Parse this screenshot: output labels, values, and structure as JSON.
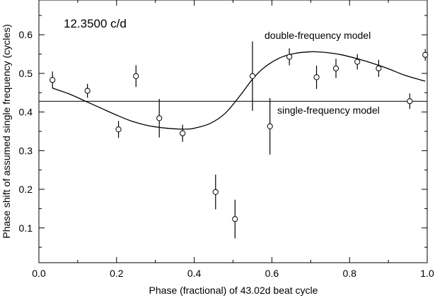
{
  "chart_data": {
    "type": "scatter",
    "annotation_top_left": "12.3500 c/d",
    "xlabel": "Phase (fractional) of 43.02d beat cycle",
    "ylabel": "Phase shift of assumed single frequency (cycles)",
    "xlim": [
      0.0,
      1.0
    ],
    "ylim": [
      0.01,
      0.69
    ],
    "x_ticks": [
      0.0,
      0.2,
      0.4,
      0.6,
      0.8,
      1.0
    ],
    "x_tick_labels": [
      "0.0",
      "0.2",
      "0.4",
      "0.6",
      "0.8",
      "1.0"
    ],
    "y_ticks": [
      0.1,
      0.2,
      0.3,
      0.4,
      0.5,
      0.6
    ],
    "y_tick_labels": [
      "0.1",
      "0.2",
      "0.3",
      "0.4",
      "0.5",
      "0.6"
    ],
    "grid": false,
    "legend": "none",
    "points": [
      {
        "x": 0.035,
        "y": 0.483,
        "yerr": 0.022
      },
      {
        "x": 0.125,
        "y": 0.455,
        "yerr": 0.018
      },
      {
        "x": 0.205,
        "y": 0.355,
        "yerr": 0.022
      },
      {
        "x": 0.25,
        "y": 0.493,
        "yerr": 0.028
      },
      {
        "x": 0.31,
        "y": 0.384,
        "yerr": 0.05
      },
      {
        "x": 0.37,
        "y": 0.345,
        "yerr": 0.022
      },
      {
        "x": 0.455,
        "y": 0.193,
        "yerr": 0.045
      },
      {
        "x": 0.505,
        "y": 0.123,
        "yerr": 0.05
      },
      {
        "x": 0.55,
        "y": 0.493,
        "yerr": 0.09
      },
      {
        "x": 0.595,
        "y": 0.363,
        "yerr": 0.073
      },
      {
        "x": 0.645,
        "y": 0.543,
        "yerr": 0.022
      },
      {
        "x": 0.715,
        "y": 0.49,
        "yerr": 0.03
      },
      {
        "x": 0.765,
        "y": 0.513,
        "yerr": 0.025
      },
      {
        "x": 0.82,
        "y": 0.53,
        "yerr": 0.02
      },
      {
        "x": 0.875,
        "y": 0.513,
        "yerr": 0.022
      },
      {
        "x": 0.955,
        "y": 0.428,
        "yerr": 0.02
      },
      {
        "x": 0.995,
        "y": 0.548,
        "yerr": 0.015
      }
    ],
    "single_frequency_model": {
      "label": "single-frequency model",
      "y": 0.428
    },
    "double_frequency_model": {
      "label": "double-frequency model",
      "x": [
        0.035,
        0.08,
        0.12,
        0.16,
        0.2,
        0.24,
        0.28,
        0.32,
        0.36,
        0.385,
        0.4,
        0.44,
        0.48,
        0.52,
        0.55,
        0.58,
        0.62,
        0.66,
        0.7,
        0.71,
        0.74,
        0.78,
        0.82,
        0.86,
        0.9,
        0.94,
        0.98,
        0.995
      ],
      "y": [
        0.462,
        0.446,
        0.428,
        0.41,
        0.392,
        0.376,
        0.365,
        0.359,
        0.356,
        0.356,
        0.358,
        0.37,
        0.397,
        0.445,
        0.485,
        0.515,
        0.54,
        0.552,
        0.556,
        0.556,
        0.554,
        0.548,
        0.538,
        0.526,
        0.512,
        0.496,
        0.484,
        0.48
      ]
    }
  }
}
